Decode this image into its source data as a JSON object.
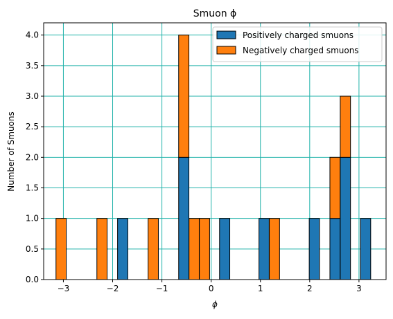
{
  "chart_data": {
    "type": "bar",
    "title": "Smuon ϕ",
    "xlabel": "ϕ",
    "ylabel": "Number of Smuons",
    "xlim": [
      -3.4,
      3.55
    ],
    "ylim": [
      0,
      4.2
    ],
    "bin_width": 0.208,
    "stacked": true,
    "grid": true,
    "grid_color": "#20b2aa",
    "legend_position": "top-right",
    "xticks": [
      {
        "value": -3,
        "label": "−3"
      },
      {
        "value": -2,
        "label": "−2"
      },
      {
        "value": -1,
        "label": "−1"
      },
      {
        "value": 0,
        "label": "0"
      },
      {
        "value": 1,
        "label": "1"
      },
      {
        "value": 2,
        "label": "2"
      },
      {
        "value": 3,
        "label": "3"
      }
    ],
    "yticks": [
      {
        "value": 0,
        "label": "0.0"
      },
      {
        "value": 0.5,
        "label": "0.5"
      },
      {
        "value": 1,
        "label": "1.0"
      },
      {
        "value": 1.5,
        "label": "1.5"
      },
      {
        "value": 2,
        "label": "2.0"
      },
      {
        "value": 2.5,
        "label": "2.5"
      },
      {
        "value": 3,
        "label": "3.0"
      },
      {
        "value": 3.5,
        "label": "3.5"
      },
      {
        "value": 4,
        "label": "4.0"
      }
    ],
    "bin_starts": [
      -3.15,
      -2.32,
      -1.9,
      -1.28,
      -0.66,
      -0.45,
      -0.24,
      0.17,
      0.97,
      1.18,
      1.99,
      2.41,
      2.62,
      3.03
    ],
    "series": [
      {
        "name": "Positively charged smuons",
        "color": "#1f77b4",
        "values": [
          0,
          0,
          1,
          0,
          2,
          0,
          0,
          1,
          1,
          0,
          1,
          1,
          2,
          1
        ]
      },
      {
        "name": "Negatively charged smuons",
        "color": "#ff7f0e",
        "values": [
          1,
          1,
          0,
          1,
          2,
          1,
          1,
          0,
          0,
          1,
          0,
          1,
          1,
          0
        ]
      }
    ]
  }
}
